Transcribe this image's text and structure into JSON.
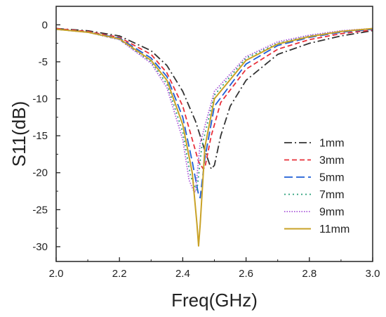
{
  "chart_data": {
    "type": "line",
    "title": "",
    "xlabel": "Freq(GHz)",
    "ylabel": "S11(dB)",
    "xlim": [
      2.0,
      3.0
    ],
    "ylim": [
      -32,
      2.5
    ],
    "xticks": [
      2.0,
      2.2,
      2.4,
      2.6,
      2.8,
      3.0
    ],
    "xtick_labels": [
      "2.0",
      "2.2",
      "2.4",
      "2.6",
      "2.8",
      "3.0"
    ],
    "yticks": [
      0,
      -5,
      -10,
      -15,
      -20,
      -25,
      -30
    ],
    "ytick_labels": [
      "0",
      "-5",
      "-10",
      "-15",
      "-20",
      "-25",
      "-30"
    ],
    "grid": false,
    "legend_position": "right",
    "series": [
      {
        "name": "1mm",
        "color": "#333333",
        "dash": "dashdot",
        "x": [
          2.0,
          2.1,
          2.2,
          2.3,
          2.35,
          2.4,
          2.44,
          2.47,
          2.49,
          2.5,
          2.52,
          2.55,
          2.6,
          2.7,
          2.8,
          2.9,
          3.0
        ],
        "y": [
          -0.5,
          -0.8,
          -1.5,
          -3.5,
          -5.5,
          -9.0,
          -13.0,
          -17.0,
          -19.5,
          -19.0,
          -15.0,
          -11.0,
          -7.5,
          -4.0,
          -2.5,
          -1.5,
          -0.8
        ]
      },
      {
        "name": "3mm",
        "color": "#e8303a",
        "dash": "dash",
        "x": [
          2.0,
          2.1,
          2.2,
          2.3,
          2.35,
          2.4,
          2.43,
          2.45,
          2.465,
          2.47,
          2.49,
          2.52,
          2.6,
          2.7,
          2.8,
          2.9,
          3.0
        ],
        "y": [
          -0.5,
          -0.9,
          -1.7,
          -4.0,
          -6.5,
          -11.0,
          -15.5,
          -18.5,
          -19.5,
          -19.3,
          -15.0,
          -10.5,
          -6.0,
          -3.3,
          -2.0,
          -1.2,
          -0.7
        ]
      },
      {
        "name": "5mm",
        "color": "#1f5fd6",
        "dash": "longdash",
        "x": [
          2.0,
          2.1,
          2.2,
          2.3,
          2.35,
          2.4,
          2.43,
          2.45,
          2.455,
          2.47,
          2.5,
          2.6,
          2.7,
          2.8,
          2.9,
          3.0
        ],
        "y": [
          -0.6,
          -1.0,
          -1.8,
          -4.5,
          -7.0,
          -12.5,
          -18.5,
          -23.0,
          -23.4,
          -18.0,
          -11.0,
          -5.3,
          -2.8,
          -1.7,
          -1.0,
          -0.6
        ]
      },
      {
        "name": "7mm",
        "color": "#2aa07a",
        "dash": "dot",
        "x": [
          2.0,
          2.1,
          2.2,
          2.3,
          2.35,
          2.4,
          2.425,
          2.44,
          2.445,
          2.46,
          2.5,
          2.6,
          2.7,
          2.8,
          2.9,
          3.0
        ],
        "y": [
          -0.6,
          -1.0,
          -2.0,
          -5.0,
          -8.0,
          -14.5,
          -20.5,
          -22.0,
          -22.3,
          -16.5,
          -9.5,
          -4.5,
          -2.5,
          -1.5,
          -0.9,
          -0.5
        ]
      },
      {
        "name": "9mm",
        "color": "#a855d8",
        "dash": "fine",
        "x": [
          2.0,
          2.1,
          2.2,
          2.3,
          2.35,
          2.4,
          2.42,
          2.435,
          2.44,
          2.455,
          2.5,
          2.6,
          2.7,
          2.8,
          2.9,
          3.0
        ],
        "y": [
          -0.6,
          -1.0,
          -2.0,
          -5.2,
          -8.5,
          -15.5,
          -21.0,
          -22.5,
          -22.6,
          -16.0,
          -9.0,
          -4.3,
          -2.3,
          -1.4,
          -0.8,
          -0.5
        ]
      },
      {
        "name": "11mm",
        "color": "#c9a227",
        "dash": "solid",
        "x": [
          2.0,
          2.1,
          2.2,
          2.3,
          2.35,
          2.4,
          2.43,
          2.445,
          2.45,
          2.455,
          2.47,
          2.5,
          2.6,
          2.7,
          2.8,
          2.9,
          3.0
        ],
        "y": [
          -0.6,
          -1.0,
          -1.9,
          -4.8,
          -7.5,
          -13.5,
          -20.0,
          -27.0,
          -29.9,
          -27.0,
          -16.5,
          -10.0,
          -4.8,
          -2.6,
          -1.6,
          -0.9,
          -0.5
        ]
      }
    ]
  }
}
